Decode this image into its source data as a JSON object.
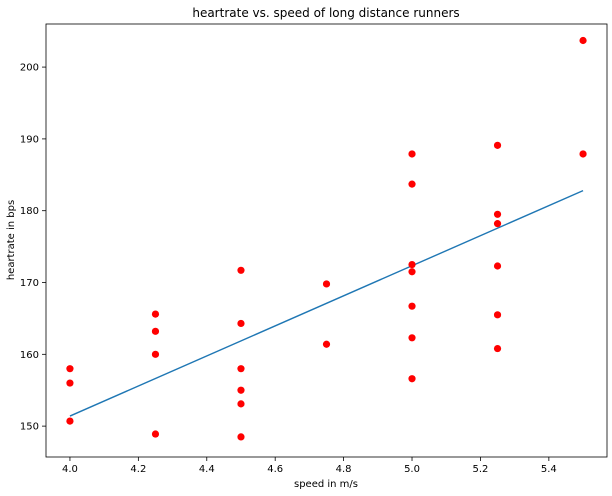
{
  "chart_data": {
    "type": "scatter",
    "title": "heartrate vs. speed of long distance runners",
    "xlabel": "speed in m/s",
    "ylabel": "heartrate in bps",
    "xlim": [
      3.93,
      5.57
    ],
    "ylim": [
      145.7,
      206.0
    ],
    "xticks": [
      "4.0",
      "4.2",
      "4.4",
      "4.6",
      "4.8",
      "5.0",
      "5.2",
      "5.4"
    ],
    "yticks": [
      "150",
      "160",
      "170",
      "180",
      "190",
      "200"
    ],
    "grid": false,
    "point_color": "#ff0000",
    "line_color": "#1f77b4",
    "points": [
      {
        "x": 4.0,
        "y": 158.0
      },
      {
        "x": 4.0,
        "y": 156.0
      },
      {
        "x": 4.0,
        "y": 150.7
      },
      {
        "x": 4.25,
        "y": 165.6
      },
      {
        "x": 4.25,
        "y": 163.2
      },
      {
        "x": 4.25,
        "y": 160.0
      },
      {
        "x": 4.25,
        "y": 148.9
      },
      {
        "x": 4.5,
        "y": 171.7
      },
      {
        "x": 4.5,
        "y": 164.3
      },
      {
        "x": 4.5,
        "y": 158.0
      },
      {
        "x": 4.5,
        "y": 155.0
      },
      {
        "x": 4.5,
        "y": 153.1
      },
      {
        "x": 4.5,
        "y": 148.5
      },
      {
        "x": 4.75,
        "y": 169.8
      },
      {
        "x": 4.75,
        "y": 161.4
      },
      {
        "x": 5.0,
        "y": 187.9
      },
      {
        "x": 5.0,
        "y": 183.7
      },
      {
        "x": 5.0,
        "y": 172.5
      },
      {
        "x": 5.0,
        "y": 171.5
      },
      {
        "x": 5.0,
        "y": 166.7
      },
      {
        "x": 5.0,
        "y": 162.3
      },
      {
        "x": 5.0,
        "y": 156.6
      },
      {
        "x": 5.25,
        "y": 189.1
      },
      {
        "x": 5.25,
        "y": 179.5
      },
      {
        "x": 5.25,
        "y": 178.2
      },
      {
        "x": 5.25,
        "y": 172.3
      },
      {
        "x": 5.25,
        "y": 165.5
      },
      {
        "x": 5.25,
        "y": 160.8
      },
      {
        "x": 5.5,
        "y": 203.7
      },
      {
        "x": 5.5,
        "y": 187.9
      }
    ],
    "fit_line": [
      {
        "x": 4.0,
        "y": 151.4
      },
      {
        "x": 5.5,
        "y": 182.8
      }
    ]
  }
}
